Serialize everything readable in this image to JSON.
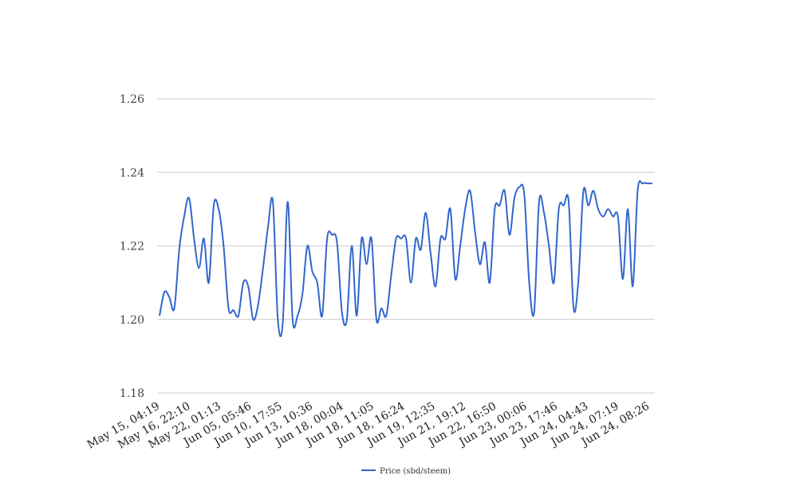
{
  "chart_data": {
    "type": "line",
    "title": "",
    "xlabel": "",
    "ylabel": "",
    "ylim": [
      1.18,
      1.26
    ],
    "yticks": [
      "1.18",
      "1.20",
      "1.22",
      "1.24",
      "1.26"
    ],
    "ytick_values": [
      1.18,
      1.2,
      1.22,
      1.24,
      1.26
    ],
    "xticks": [
      "May 15, 04:19",
      "May 16, 22:10",
      "May 22, 01:13",
      "Jun 05, 05:46",
      "Jun 10, 17:55",
      "Jun 13, 10:36",
      "Jun 18, 00:04",
      "Jun 18, 11:05",
      "Jun 18, 16:24",
      "Jun 19, 12:35",
      "Jun 21, 19:12",
      "Jun 22, 16:50",
      "Jun 23, 00:06",
      "Jun 23, 17:46",
      "Jun 24, 04:43",
      "Jun 24, 07:19",
      "Jun 24, 08:26"
    ],
    "grid": true,
    "legend_position": "bottom",
    "colors": {
      "line": "#3366cc",
      "grid": "#cccccc"
    },
    "series": [
      {
        "name": "Price (sbd/steem)",
        "values": [
          1.201,
          1.2075,
          1.206,
          1.203,
          1.219,
          1.228,
          1.233,
          1.222,
          1.214,
          1.222,
          1.21,
          1.231,
          1.23,
          1.22,
          1.203,
          1.2025,
          1.201,
          1.21,
          1.209,
          1.2,
          1.204,
          1.214,
          1.225,
          1.232,
          1.2,
          1.199,
          1.232,
          1.2,
          1.201,
          1.207,
          1.22,
          1.213,
          1.21,
          1.201,
          1.222,
          1.223,
          1.221,
          1.202,
          1.2,
          1.22,
          1.201,
          1.222,
          1.215,
          1.222,
          1.2,
          1.203,
          1.201,
          1.212,
          1.222,
          1.222,
          1.222,
          1.21,
          1.222,
          1.219,
          1.229,
          1.218,
          1.209,
          1.222,
          1.222,
          1.23,
          1.211,
          1.22,
          1.23,
          1.235,
          1.224,
          1.215,
          1.221,
          1.21,
          1.23,
          1.231,
          1.235,
          1.223,
          1.233,
          1.236,
          1.234,
          1.21,
          1.202,
          1.232,
          1.229,
          1.22,
          1.21,
          1.23,
          1.231,
          1.232,
          1.203,
          1.211,
          1.235,
          1.231,
          1.235,
          1.23,
          1.228,
          1.23,
          1.228,
          1.228,
          1.211,
          1.23,
          1.209,
          1.235,
          1.237,
          1.237,
          1.237
        ]
      }
    ]
  }
}
